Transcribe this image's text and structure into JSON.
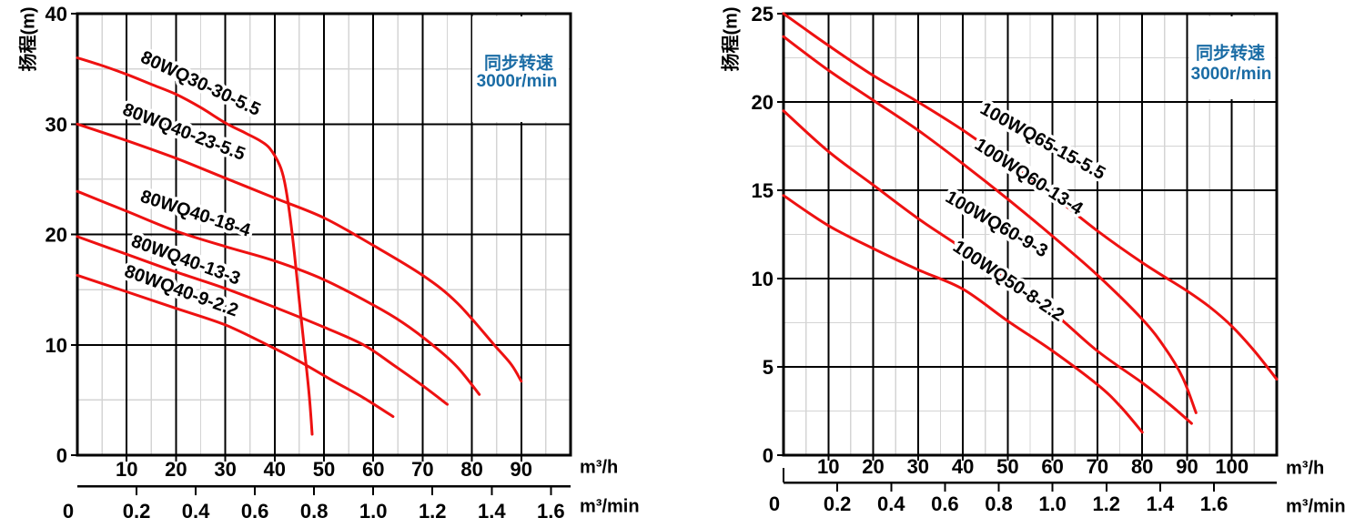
{
  "colors": {
    "curve_red": "#ee1111",
    "grid_major": "#000000",
    "grid_minor": "#d4d4d4",
    "annotation_blue": "#1a6ca5",
    "text": "#000000",
    "background": "#ffffff"
  },
  "chart_data": [
    {
      "type": "line",
      "ylabel": "扬程(m)",
      "annotation": {
        "line1": "同步转速",
        "line2": "3000r/min"
      },
      "x_axis": {
        "unit": "m³/h",
        "min": 0,
        "max": 100,
        "major_step": 10,
        "minor_step": 5,
        "tick_labels": [
          "10",
          "20",
          "30",
          "40",
          "50",
          "60",
          "70",
          "80",
          "90"
        ]
      },
      "x2_axis": {
        "unit": "m³/min",
        "to_primary_ratio": 60,
        "tick_labels": [
          "0",
          "0.2",
          "0.4",
          "0.6",
          "0.8",
          "1.0",
          "1.2",
          "1.4",
          "1.6"
        ]
      },
      "y_axis": {
        "min": 0,
        "max": 40,
        "major_step": 10,
        "minor_step": 5,
        "tick_labels": [
          "0",
          "10",
          "20",
          "30",
          "40"
        ]
      },
      "series": [
        {
          "name": "80WQ30-30-5.5",
          "label": {
            "x": 24.5,
            "y": 33.2,
            "angle": 25
          },
          "points": [
            [
              0,
              36
            ],
            [
              5,
              35.3
            ],
            [
              10,
              34.5
            ],
            [
              15,
              33.6
            ],
            [
              20,
              32.7
            ],
            [
              25,
              31.5
            ],
            [
              30,
              30.1
            ],
            [
              34,
              29.2
            ],
            [
              37,
              28.5
            ],
            [
              39,
              27.8
            ],
            [
              41,
              26.3
            ],
            [
              42,
              24.8
            ],
            [
              43,
              22
            ],
            [
              44,
              18.3
            ],
            [
              45,
              14
            ],
            [
              46,
              9.8
            ],
            [
              47,
              5.5
            ],
            [
              47.6,
              1.9
            ]
          ]
        },
        {
          "name": "80WQ40-23-5.5",
          "label": {
            "x": 21.2,
            "y": 28.8,
            "angle": 21
          },
          "points": [
            [
              0,
              30
            ],
            [
              10,
              28.5
            ],
            [
              20,
              26.9
            ],
            [
              30,
              25.1
            ],
            [
              40,
              23.3
            ],
            [
              50,
              21.5
            ],
            [
              60,
              19
            ],
            [
              70,
              16.3
            ],
            [
              77,
              13.8
            ],
            [
              84.5,
              10
            ],
            [
              88,
              8.2
            ],
            [
              90,
              6.7
            ]
          ]
        },
        {
          "name": "80WQ40-18-4",
          "label": {
            "x": 23.6,
            "y": 21.4,
            "angle": 18
          },
          "points": [
            [
              0,
              23.9
            ],
            [
              10,
              22.1
            ],
            [
              20,
              20.3
            ],
            [
              30,
              18.9
            ],
            [
              40,
              17.6
            ],
            [
              50,
              15.9
            ],
            [
              60,
              13.6
            ],
            [
              66,
              12
            ],
            [
              72,
              10
            ],
            [
              77,
              8
            ],
            [
              81.5,
              5.5
            ]
          ]
        },
        {
          "name": "80WQ40-13-3",
          "label": {
            "x": 21.6,
            "y": 17.2,
            "angle": 20
          },
          "points": [
            [
              0,
              19.8
            ],
            [
              10,
              18.2
            ],
            [
              20,
              16.6
            ],
            [
              30,
              15.1
            ],
            [
              40,
              13.4
            ],
            [
              50,
              11.6
            ],
            [
              58,
              10
            ],
            [
              64,
              8.2
            ],
            [
              70,
              6.3
            ],
            [
              75,
              4.6
            ]
          ]
        },
        {
          "name": "80WQ40-9-2.2",
          "label": {
            "x": 20.7,
            "y": 14.4,
            "angle": 20
          },
          "points": [
            [
              0,
              16.3
            ],
            [
              10,
              14.8
            ],
            [
              20,
              13.3
            ],
            [
              30,
              11.8
            ],
            [
              38.5,
              10
            ],
            [
              45,
              8.5
            ],
            [
              52,
              6.7
            ],
            [
              58,
              5.2
            ],
            [
              64,
              3.5
            ]
          ]
        }
      ]
    },
    {
      "type": "line",
      "ylabel": "扬程(m)",
      "annotation": {
        "line1": "同步转速",
        "line2": "3000r/min"
      },
      "x_axis": {
        "unit": "m³/h",
        "min": 0,
        "max": 110,
        "major_step": 10,
        "minor_step": 5,
        "tick_labels": [
          "10",
          "20",
          "30",
          "40",
          "50",
          "60",
          "70",
          "80",
          "90",
          "100"
        ]
      },
      "x2_axis": {
        "unit": "m³/min",
        "to_primary_ratio": 60,
        "tick_labels": [
          "0",
          "0.2",
          "0.4",
          "0.6",
          "0.8",
          "1.0",
          "1.2",
          "1.4",
          "1.6"
        ]
      },
      "y_axis": {
        "min": 0,
        "max": 25,
        "major_step": 5,
        "minor_step": 2.5,
        "tick_labels": [
          "0",
          "5",
          "10",
          "15",
          "20",
          "25"
        ]
      },
      "series": [
        {
          "name": "100WQ65-15-5.5",
          "label": {
            "x": 57.2,
            "y": 17.5,
            "angle": 29
          },
          "points": [
            [
              0,
              25
            ],
            [
              10,
              23.2
            ],
            [
              20,
              21.5
            ],
            [
              30,
              20
            ],
            [
              40,
              18.4
            ],
            [
              50,
              16.6
            ],
            [
              60,
              14.7
            ],
            [
              70,
              12.7
            ],
            [
              80,
              10.9
            ],
            [
              90,
              9.3
            ],
            [
              95,
              8.4
            ],
            [
              100,
              7.3
            ],
            [
              105,
              5.9
            ],
            [
              110,
              4.3
            ]
          ]
        },
        {
          "name": "100WQ60-13-4",
          "label": {
            "x": 54,
            "y": 15.5,
            "angle": 33
          },
          "points": [
            [
              0,
              23.7
            ],
            [
              10,
              21.8
            ],
            [
              20,
              20.1
            ],
            [
              30,
              18.4
            ],
            [
              40,
              16.5
            ],
            [
              50,
              14.5
            ],
            [
              60,
              12.4
            ],
            [
              70,
              10.2
            ],
            [
              80,
              7.7
            ],
            [
              85,
              6.1
            ],
            [
              89,
              4.4
            ],
            [
              92,
              2.4
            ]
          ]
        },
        {
          "name": "100WQ60-9-3",
          "label": {
            "x": 46.9,
            "y": 12.8,
            "angle": 30
          },
          "points": [
            [
              0,
              19.5
            ],
            [
              10,
              17.2
            ],
            [
              20,
              15.3
            ],
            [
              30,
              13.4
            ],
            [
              40,
              11.7
            ],
            [
              50,
              9.9
            ],
            [
              60,
              8.1
            ],
            [
              70,
              5.9
            ],
            [
              80,
              4.1
            ],
            [
              86,
              2.9
            ],
            [
              91,
              1.8
            ]
          ]
        },
        {
          "name": "100WQ50-8-2.2",
          "label": {
            "x": 49.5,
            "y": 9.6,
            "angle": 34
          },
          "points": [
            [
              0,
              14.7
            ],
            [
              10,
              13
            ],
            [
              20,
              11.7
            ],
            [
              30,
              10.5
            ],
            [
              40,
              9.4
            ],
            [
              50,
              7.6
            ],
            [
              60,
              5.9
            ],
            [
              70,
              4
            ],
            [
              75,
              2.8
            ],
            [
              80,
              1.3
            ]
          ]
        }
      ]
    }
  ]
}
